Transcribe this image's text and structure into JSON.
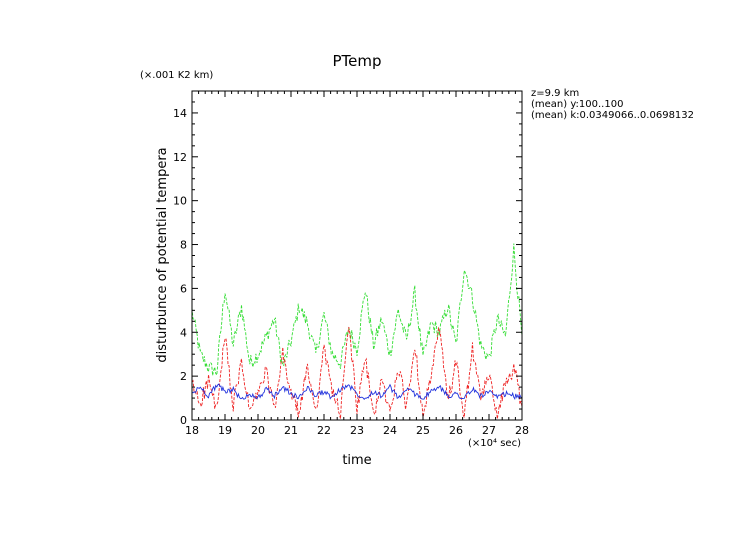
{
  "chart_data": {
    "type": "line",
    "title": "PTemp",
    "xlabel": "time",
    "ylabel": "disturbunce of potential tempera",
    "y_unit": "(×.001 K2 km)",
    "x_unit": "(×10⁴ sec)",
    "annotations": [
      "z=9.9 km",
      "(mean) y:100..100",
      "(mean) k:0.0349066..0.0698132"
    ],
    "xlim": [
      18,
      28
    ],
    "ylim": [
      0,
      15
    ],
    "xticks": [
      18,
      19,
      20,
      21,
      22,
      23,
      24,
      25,
      26,
      27,
      28
    ],
    "xtick_labels": [
      "18",
      "19",
      "20",
      "21",
      "22",
      "23",
      "24",
      "25",
      "26",
      "27",
      "28"
    ],
    "yticks": [
      0,
      2,
      4,
      6,
      8,
      10,
      12,
      14
    ],
    "ytick_labels": [
      "0",
      "2",
      "4",
      "6",
      "8",
      "10",
      "12",
      "14"
    ],
    "x": [
      18.0,
      18.25,
      18.5,
      18.75,
      19.0,
      19.25,
      19.5,
      19.75,
      20.0,
      20.25,
      20.5,
      20.75,
      21.0,
      21.25,
      21.5,
      21.75,
      22.0,
      22.25,
      22.5,
      22.75,
      23.0,
      23.25,
      23.5,
      23.75,
      24.0,
      24.25,
      24.5,
      24.75,
      25.0,
      25.25,
      25.5,
      25.75,
      26.0,
      26.25,
      26.5,
      26.75,
      27.0,
      27.25,
      27.5,
      27.75,
      28.0
    ],
    "series": [
      {
        "name": "green",
        "color": "#33dd33",
        "style": "dashed",
        "values": [
          5.0,
          3.0,
          2.4,
          2.2,
          6.0,
          3.4,
          5.2,
          2.6,
          3.0,
          3.8,
          4.6,
          2.4,
          3.6,
          5.2,
          4.4,
          3.0,
          4.8,
          3.0,
          2.6,
          4.2,
          3.2,
          6.0,
          3.4,
          4.6,
          3.0,
          5.0,
          3.6,
          5.8,
          2.8,
          4.4,
          4.0,
          5.2,
          3.4,
          7.0,
          5.6,
          3.4,
          2.8,
          4.6,
          3.8,
          7.8,
          3.8
        ]
      },
      {
        "name": "red",
        "color": "#ee2222",
        "style": "dashed",
        "values": [
          1.6,
          0.8,
          1.8,
          0.4,
          3.8,
          0.6,
          2.6,
          0.4,
          1.2,
          2.2,
          0.4,
          3.0,
          1.2,
          0.3,
          2.4,
          0.4,
          3.2,
          1.4,
          0.2,
          4.4,
          0.5,
          2.8,
          0.2,
          1.8,
          0.3,
          2.4,
          0.6,
          3.4,
          0.3,
          2.0,
          4.2,
          0.8,
          2.6,
          0.2,
          3.2,
          1.0,
          2.0,
          0.3,
          1.6,
          2.4,
          0.6
        ]
      },
      {
        "name": "blue",
        "color": "#2233dd",
        "style": "solid",
        "values": [
          1.2,
          1.5,
          1.1,
          1.6,
          1.3,
          1.4,
          0.9,
          1.2,
          1.0,
          1.4,
          1.1,
          1.5,
          1.2,
          1.0,
          1.5,
          1.1,
          1.3,
          1.0,
          1.4,
          1.6,
          1.2,
          1.0,
          1.3,
          1.1,
          1.5,
          1.0,
          1.4,
          1.2,
          1.0,
          1.3,
          1.5,
          1.1,
          1.2,
          1.0,
          1.4,
          1.1,
          1.3,
          1.0,
          1.2,
          1.1,
          1.0
        ]
      }
    ]
  }
}
